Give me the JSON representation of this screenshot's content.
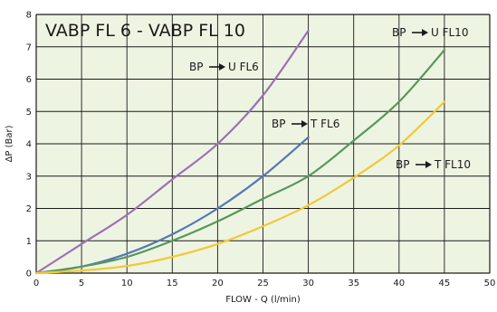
{
  "colors": {
    "background": "#eef4e2",
    "grid": "#1a1a1a"
  },
  "chart_data": {
    "type": "line",
    "title": "VABP FL 6 - VABP FL 10",
    "xlabel": "FLOW - Q (l/min)",
    "ylabel": "ΔP (Bar)",
    "xlim": [
      0,
      50
    ],
    "ylim": [
      0,
      8
    ],
    "xticks": [
      0,
      5,
      10,
      15,
      20,
      25,
      30,
      35,
      40,
      45,
      50
    ],
    "yticks": [
      0,
      1,
      2,
      3,
      4,
      5,
      6,
      7,
      8
    ],
    "grid": true,
    "series": [
      {
        "name": "BP → U FL6",
        "label_parts": [
          "BP",
          "U FL6"
        ],
        "color": "#9b71b4",
        "x": [
          0,
          5,
          10,
          15,
          20,
          25,
          30
        ],
        "y": [
          0,
          0.9,
          1.8,
          2.9,
          4.0,
          5.5,
          7.5
        ]
      },
      {
        "name": "BP → T FL6",
        "label_parts": [
          "BP",
          "T FL6"
        ],
        "color": "#5577b5",
        "x": [
          0,
          5,
          10,
          15,
          20,
          25,
          30
        ],
        "y": [
          0,
          0.2,
          0.6,
          1.2,
          2.0,
          3.0,
          4.2
        ]
      },
      {
        "name": "BP → U FL10",
        "label_parts": [
          "BP",
          "U FL10"
        ],
        "color": "#55985a",
        "x": [
          0,
          5,
          10,
          15,
          20,
          25,
          30,
          35,
          40,
          45
        ],
        "y": [
          0,
          0.2,
          0.5,
          1.0,
          1.6,
          2.3,
          3.0,
          4.1,
          5.3,
          6.9
        ]
      },
      {
        "name": "BP → T FL10",
        "label_parts": [
          "BP",
          "T FL10"
        ],
        "color": "#f2c836",
        "x": [
          0,
          5,
          10,
          15,
          20,
          25,
          30,
          35,
          40,
          45
        ],
        "y": [
          0,
          0.08,
          0.22,
          0.5,
          0.9,
          1.45,
          2.1,
          2.95,
          3.95,
          5.3
        ]
      }
    ]
  }
}
